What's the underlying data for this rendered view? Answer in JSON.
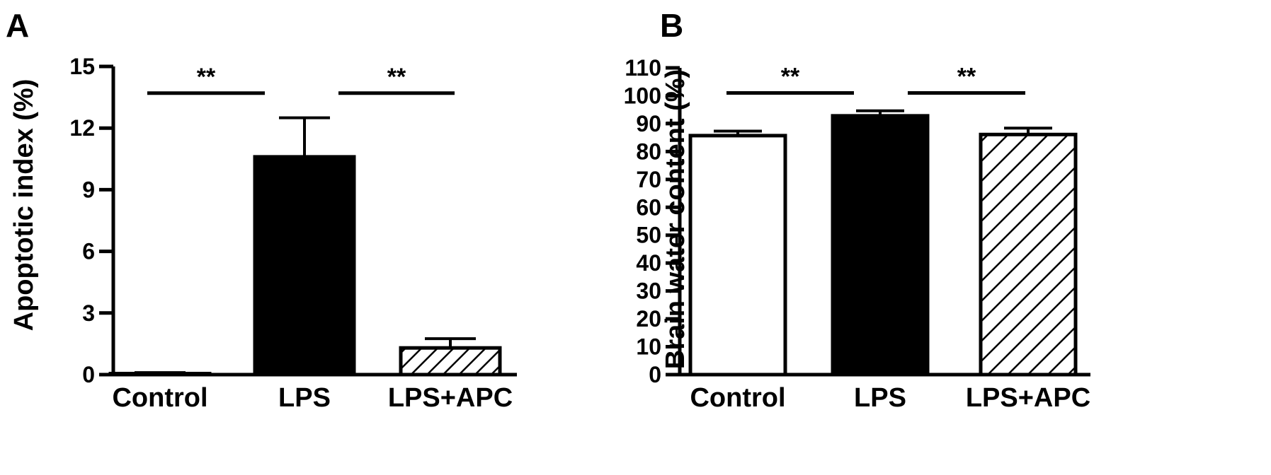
{
  "colors": {
    "ink": "#000000",
    "background": "#ffffff"
  },
  "chart_data": [
    {
      "panel_letter": "A",
      "type": "bar",
      "ylabel": "Apoptotic index (%)",
      "xlabel": "",
      "ylim": [
        0,
        15
      ],
      "yticks": [
        0,
        3,
        6,
        9,
        12,
        15
      ],
      "categories": [
        "Control",
        "LPS",
        "LPS+APC"
      ],
      "values": [
        0.05,
        10.6,
        1.3
      ],
      "errors": [
        0.05,
        1.9,
        0.45
      ],
      "fills": [
        "white",
        "black",
        "hatch"
      ],
      "grid": false,
      "significance": [
        {
          "from": 0,
          "to": 1,
          "label": "**",
          "y": 13.7
        },
        {
          "from": 1,
          "to": 2,
          "label": "**",
          "y": 13.7
        }
      ]
    },
    {
      "panel_letter": "B",
      "type": "bar",
      "ylabel": "Brain water content (%)",
      "xlabel": "",
      "ylim": [
        0,
        110
      ],
      "yticks": [
        0,
        10,
        20,
        30,
        40,
        50,
        60,
        70,
        80,
        90,
        100,
        110
      ],
      "categories": [
        "Control",
        "LPS",
        "LPS+APC"
      ],
      "values": [
        85.7,
        92.8,
        86.1
      ],
      "errors": [
        1.6,
        1.8,
        2.3
      ],
      "fills": [
        "white",
        "black",
        "hatch"
      ],
      "grid": false,
      "significance": [
        {
          "from": 0,
          "to": 1,
          "label": "**",
          "y": 101
        },
        {
          "from": 1,
          "to": 2,
          "label": "**",
          "y": 101
        }
      ]
    }
  ]
}
